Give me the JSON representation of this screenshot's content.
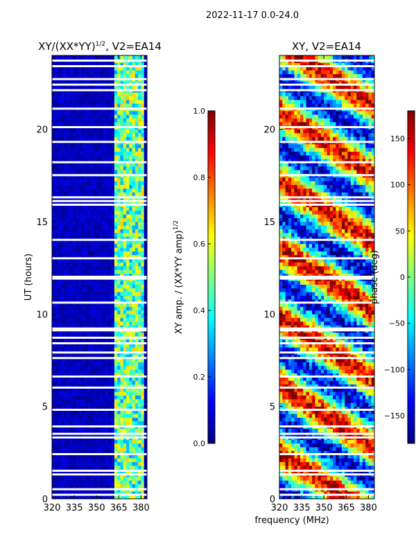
{
  "figure": {
    "suptitle": "2022-11-17 0.0-24.0",
    "shared_xlabel": "frequency (MHz)"
  },
  "colors": {
    "jet": [
      "#00007f",
      "#0000ff",
      "#007fff",
      "#00ffff",
      "#7fff7f",
      "#ffff00",
      "#ff7f00",
      "#ff0000",
      "#7f0000"
    ]
  },
  "chart_data": [
    {
      "type": "heatmap",
      "title": "XY/(XX*YY)",
      "title_exponent": "1/2",
      "title_suffix": ", V2=EA14",
      "xlabel": "",
      "ylabel": "UT (hours)",
      "xlim": [
        320,
        384
      ],
      "ylim": [
        0,
        24
      ],
      "xticks": [
        320,
        335,
        350,
        365,
        380
      ],
      "yticks": [
        0,
        5,
        10,
        15,
        20
      ],
      "colorbar": {
        "label": "XY amp. / (XX*YY amp)",
        "label_exponent": "1/2",
        "range": [
          0.0,
          1.0
        ],
        "ticks": [
          "0.0",
          "0.2",
          "0.4",
          "0.6",
          "0.8",
          "1.0"
        ]
      },
      "bright_band_mhz": [
        362,
        382
      ],
      "typical_value_low_band": 0.05,
      "typical_value_high_band": 0.45,
      "flagged_hours": [
        0.2,
        0.5,
        1.3,
        1.5,
        2.4,
        3.3,
        3.5,
        3.9,
        4.8,
        6.0,
        6.6,
        7.6,
        7.9,
        8.4,
        8.7,
        9.1,
        9.2,
        10.6,
        11.9,
        12.0,
        13.0,
        14.0,
        15.9,
        16.1,
        16.3,
        17.5,
        18.2,
        19.3,
        20.1,
        21.1,
        22.1,
        22.4,
        22.7,
        23.4,
        23.7
      ]
    },
    {
      "type": "heatmap",
      "title": "XY, V2=EA14",
      "xlabel": "frequency (MHz)",
      "ylabel": "",
      "xlim": [
        320,
        384
      ],
      "ylim": [
        0,
        24
      ],
      "xticks": [
        320,
        335,
        350,
        365,
        380
      ],
      "yticks": [
        0,
        5,
        10,
        15,
        20
      ],
      "colorbar": {
        "label": "phase (deg)",
        "range": [
          -180,
          180
        ],
        "ticks": [
          "−150",
          "−100",
          "−50",
          "0",
          "50",
          "100",
          "150"
        ]
      },
      "flagged_hours": [
        0.2,
        0.5,
        1.3,
        1.5,
        2.4,
        3.3,
        3.5,
        3.9,
        4.8,
        6.0,
        6.6,
        7.6,
        7.9,
        8.4,
        8.7,
        9.1,
        9.2,
        10.6,
        11.9,
        12.0,
        13.0,
        14.0,
        15.9,
        16.1,
        16.3,
        17.5,
        18.2,
        19.3,
        20.1,
        21.1,
        22.1,
        22.4,
        22.7,
        23.4,
        23.7
      ]
    }
  ]
}
